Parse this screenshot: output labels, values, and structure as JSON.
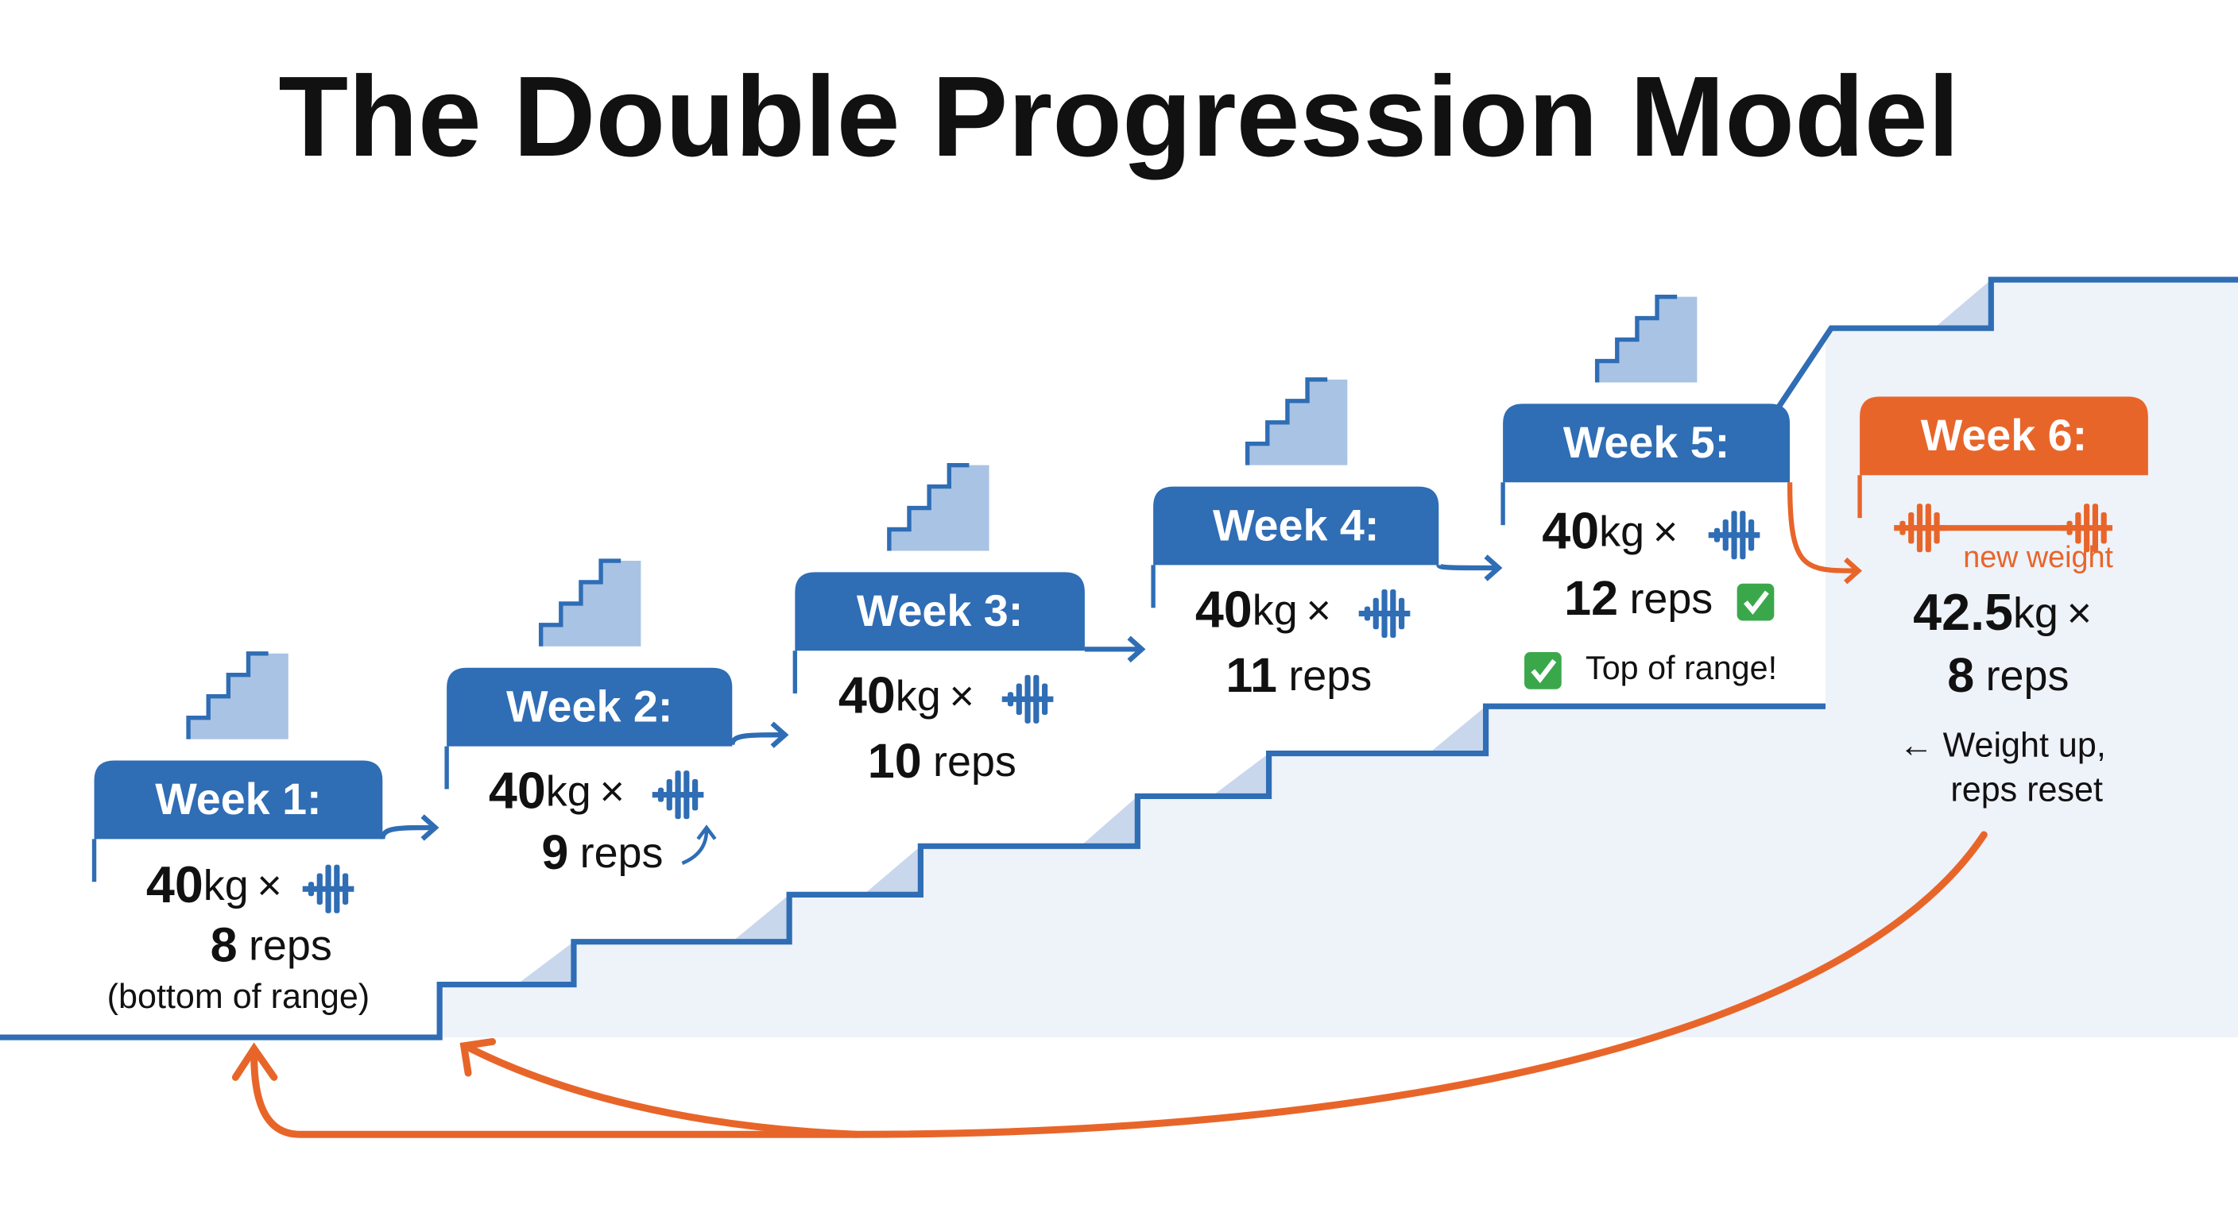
{
  "title": "The Double Progression Model",
  "weeks": [
    {
      "label": "Week 1:",
      "weight": "40",
      "unit": "kg",
      "times": "×",
      "reps": "8",
      "reps_unit": "reps",
      "notes": [
        "(bottom of range)"
      ]
    },
    {
      "label": "Week 2:",
      "weight": "40",
      "unit": "kg",
      "times": "×",
      "reps": "9",
      "reps_unit": "reps",
      "notes": []
    },
    {
      "label": "Week 3:",
      "weight": "40",
      "unit": "kg",
      "times": "×",
      "reps": "10",
      "reps_unit": "reps",
      "notes": []
    },
    {
      "label": "Week 4:",
      "weight": "40",
      "unit": "kg",
      "times": "×",
      "reps": "11",
      "reps_unit": "reps",
      "notes": []
    },
    {
      "label": "Week 5:",
      "weight": "40",
      "unit": "kg",
      "times": "×",
      "reps": "12",
      "reps_unit": "reps",
      "notes": [
        "Top of range!"
      ]
    },
    {
      "label": "Week 6:",
      "tag": "new weight",
      "weight": "42.5",
      "unit": "kg",
      "times": "×",
      "reps": "8",
      "reps_unit": "reps",
      "notes": [
        "← Weight up,",
        "reps reset"
      ]
    }
  ]
}
